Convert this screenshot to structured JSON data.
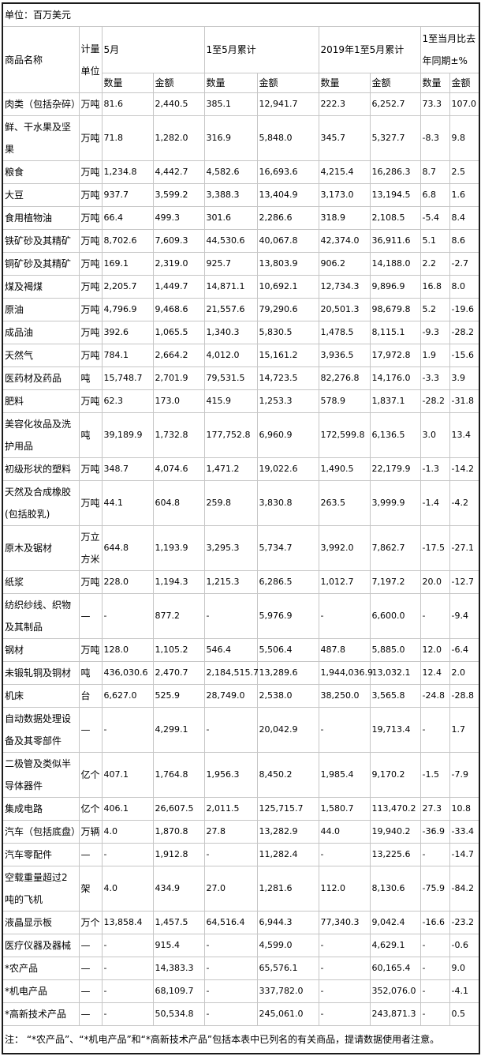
{
  "meta": {
    "unit_note": "单位：百万美元"
  },
  "header": {
    "commodity": "商品名称",
    "unit": "计量单位",
    "groups": [
      {
        "label": "5月"
      },
      {
        "label": "1至5月累计"
      },
      {
        "label": "2019年1至5月累计"
      },
      {
        "label": "1至当月比去年同期±%"
      }
    ],
    "qty": "数量",
    "amt": "金额"
  },
  "rows": [
    {
      "name": "肉类（包括杂碎）",
      "unit": "万吨",
      "values": [
        "81.6",
        "2,440.5",
        "385.1",
        "12,941.7",
        "222.3",
        "6,252.7",
        "73.3",
        "107.0"
      ]
    },
    {
      "name": "鲜、干水果及坚果",
      "unit": "万吨",
      "values": [
        "71.8",
        "1,282.0",
        "316.9",
        "5,848.0",
        "345.7",
        "5,327.7",
        "-8.3",
        "9.8"
      ]
    },
    {
      "name": "粮食",
      "unit": "万吨",
      "values": [
        "1,234.8",
        "4,442.7",
        "4,582.6",
        "16,693.6",
        "4,215.4",
        "16,286.3",
        "8.7",
        "2.5"
      ]
    },
    {
      "name": "大豆",
      "unit": "万吨",
      "values": [
        "937.7",
        "3,599.2",
        "3,388.3",
        "13,404.9",
        "3,173.0",
        "13,194.5",
        "6.8",
        "1.6"
      ]
    },
    {
      "name": "食用植物油",
      "unit": "万吨",
      "values": [
        "66.4",
        "499.3",
        "301.6",
        "2,286.6",
        "318.9",
        "2,108.5",
        "-5.4",
        "8.4"
      ]
    },
    {
      "name": "铁矿砂及其精矿",
      "unit": "万吨",
      "values": [
        "8,702.6",
        "7,609.3",
        "44,530.6",
        "40,067.8",
        "42,374.0",
        "36,911.6",
        "5.1",
        "8.6"
      ]
    },
    {
      "name": "铜矿砂及其精矿",
      "unit": "万吨",
      "values": [
        "169.1",
        "2,319.0",
        "925.7",
        "13,803.9",
        "906.2",
        "14,188.0",
        "2.2",
        "-2.7"
      ]
    },
    {
      "name": "煤及褐煤",
      "unit": "万吨",
      "values": [
        "2,205.7",
        "1,449.7",
        "14,871.1",
        "10,692.1",
        "12,734.3",
        "9,896.9",
        "16.8",
        "8.0"
      ]
    },
    {
      "name": "原油",
      "unit": "万吨",
      "values": [
        "4,796.9",
        "9,468.6",
        "21,557.6",
        "79,290.6",
        "20,501.3",
        "98,679.8",
        "5.2",
        "-19.6"
      ]
    },
    {
      "name": "成品油",
      "unit": "万吨",
      "values": [
        "392.6",
        "1,065.5",
        "1,340.3",
        "5,830.5",
        "1,478.5",
        "8,115.1",
        "-9.3",
        "-28.2"
      ]
    },
    {
      "name": "天然气",
      "unit": "万吨",
      "values": [
        "784.1",
        "2,664.2",
        "4,012.0",
        "15,161.2",
        "3,936.5",
        "17,972.8",
        "1.9",
        "-15.6"
      ]
    },
    {
      "name": "医药材及药品",
      "unit": "吨",
      "values": [
        "15,748.7",
        "2,701.9",
        "79,531.5",
        "14,723.5",
        "82,276.8",
        "14,176.0",
        "-3.3",
        "3.9"
      ]
    },
    {
      "name": "肥料",
      "unit": "万吨",
      "values": [
        "62.3",
        "173.0",
        "415.9",
        "1,253.3",
        "578.9",
        "1,837.1",
        "-28.2",
        "-31.8"
      ]
    },
    {
      "name": "美容化妆品及洗护用品",
      "unit": "吨",
      "values": [
        "39,189.9",
        "1,732.8",
        "177,752.8",
        "6,960.9",
        "172,599.8",
        "6,136.5",
        "3.0",
        "13.4"
      ]
    },
    {
      "name": "初级形状的塑料",
      "unit": "万吨",
      "values": [
        "348.7",
        "4,074.6",
        "1,471.2",
        "19,022.6",
        "1,490.5",
        "22,179.9",
        "-1.3",
        "-14.2"
      ]
    },
    {
      "name": "天然及合成橡胶(包括胶乳)",
      "unit": "万吨",
      "values": [
        "44.1",
        "604.8",
        "259.8",
        "3,830.8",
        "263.5",
        "3,999.9",
        "-1.4",
        "-4.2"
      ]
    },
    {
      "name": "原木及锯材",
      "unit": "万立方米",
      "values": [
        "644.8",
        "1,193.9",
        "3,295.3",
        "5,734.7",
        "3,992.0",
        "7,862.7",
        "-17.5",
        "-27.1"
      ]
    },
    {
      "name": "纸浆",
      "unit": "万吨",
      "values": [
        "228.0",
        "1,194.3",
        "1,215.3",
        "6,286.5",
        "1,012.7",
        "7,197.2",
        "20.0",
        "-12.7"
      ]
    },
    {
      "name": "纺织纱线、织物及其制品",
      "unit": "—",
      "values": [
        "-",
        "877.2",
        "-",
        "5,976.9",
        "-",
        "6,600.0",
        "-",
        "-9.4"
      ]
    },
    {
      "name": "钢材",
      "unit": "万吨",
      "values": [
        "128.0",
        "1,105.2",
        "546.4",
        "5,506.4",
        "487.8",
        "5,885.0",
        "12.0",
        "-6.4"
      ]
    },
    {
      "name": "未锻轧铜及铜材",
      "unit": "吨",
      "values": [
        "436,030.6",
        "2,470.7",
        "2,184,515.7",
        "13,289.6",
        "1,944,036.9",
        "13,032.1",
        "12.4",
        "2.0"
      ]
    },
    {
      "name": "机床",
      "unit": "台",
      "values": [
        "6,627.0",
        "525.9",
        "28,749.0",
        "2,538.0",
        "38,250.0",
        "3,565.8",
        "-24.8",
        "-28.8"
      ]
    },
    {
      "name": "自动数据处理设备及其零部件",
      "unit": "—",
      "values": [
        "-",
        "4,299.1",
        "-",
        "20,042.9",
        "-",
        "19,713.4",
        "-",
        "1.7"
      ]
    },
    {
      "name": "二极管及类似半导体器件",
      "unit": "亿个",
      "values": [
        "407.1",
        "1,764.8",
        "1,956.3",
        "8,450.2",
        "1,985.4",
        "9,170.2",
        "-1.5",
        "-7.9"
      ]
    },
    {
      "name": "集成电路",
      "unit": "亿个",
      "values": [
        "406.1",
        "26,607.5",
        "2,011.5",
        "125,715.7",
        "1,580.7",
        "113,470.2",
        "27.3",
        "10.8"
      ]
    },
    {
      "name": "汽车（包括底盘）",
      "unit": "万辆",
      "values": [
        "4.0",
        "1,870.8",
        "27.8",
        "13,282.9",
        "44.0",
        "19,940.2",
        "-36.9",
        "-33.4"
      ]
    },
    {
      "name": "汽车零配件",
      "unit": "—",
      "values": [
        "-",
        "1,912.8",
        "-",
        "11,282.4",
        "-",
        "13,225.6",
        "-",
        "-14.7"
      ]
    },
    {
      "name": "空载重量超过2吨的飞机",
      "unit": "架",
      "values": [
        "4.0",
        "434.9",
        "27.0",
        "1,281.6",
        "112.0",
        "8,130.6",
        "-75.9",
        "-84.2"
      ]
    },
    {
      "name": "液晶显示板",
      "unit": "万个",
      "values": [
        "13,858.4",
        "1,457.5",
        "64,516.4",
        "6,944.3",
        "77,340.3",
        "9,042.4",
        "-16.6",
        "-23.2"
      ]
    },
    {
      "name": "医疗仪器及器械",
      "unit": "—",
      "values": [
        "-",
        "915.4",
        "-",
        "4,599.0",
        "-",
        "4,629.1",
        "-",
        "-0.6"
      ]
    },
    {
      "name": "*农产品",
      "unit": "—",
      "values": [
        "-",
        "14,383.3",
        "-",
        "65,576.1",
        "-",
        "60,165.4",
        "-",
        "9.0"
      ]
    },
    {
      "name": "*机电产品",
      "unit": "—",
      "values": [
        "-",
        "68,109.7",
        "-",
        "337,782.0",
        "-",
        "352,076.0",
        "-",
        "-4.1"
      ]
    },
    {
      "name": "*高新技术产品",
      "unit": "—",
      "values": [
        "-",
        "50,534.8",
        "-",
        "245,061.0",
        "-",
        "243,871.3",
        "-",
        "0.5"
      ]
    }
  ],
  "footnote": "注： “*农产品”、“*机电产品”和“*高新技术产品”包括本表中已列名的有关商品，提请数据使用者注意。"
}
